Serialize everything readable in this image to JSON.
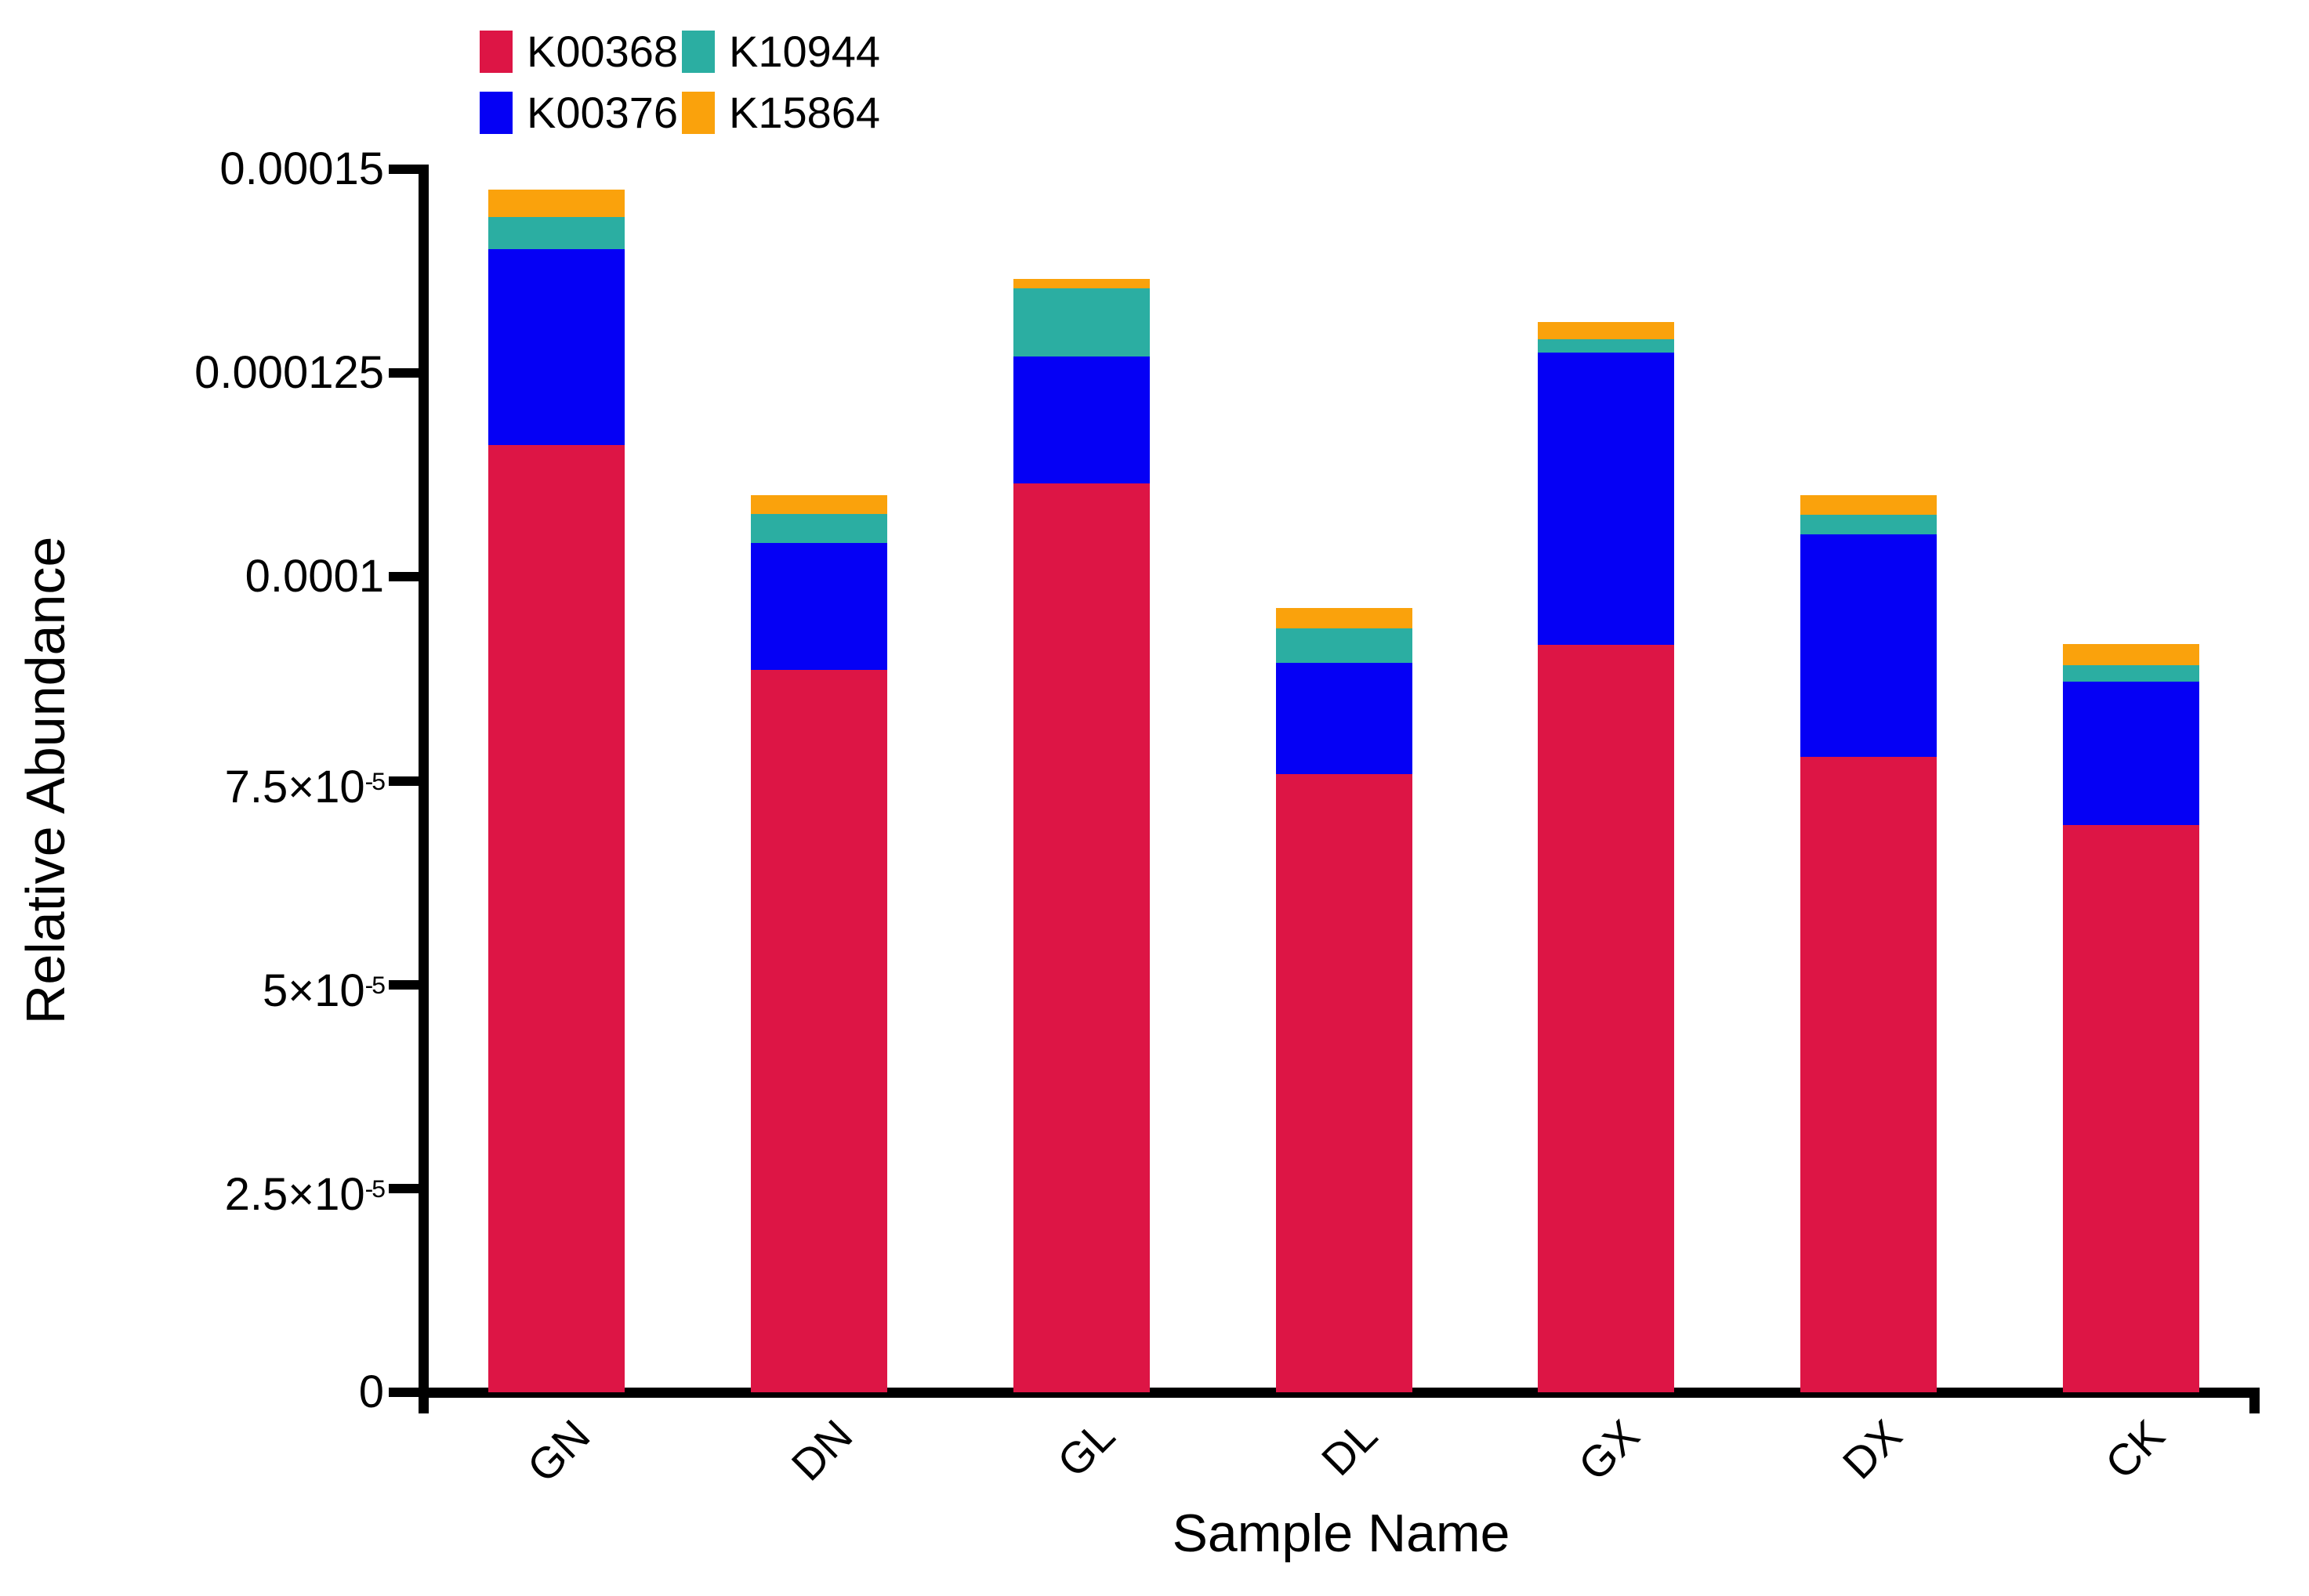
{
  "figure": {
    "background": "#FFFFFF",
    "y_axis_title": "Relative Abundance",
    "x_axis_title": "Sample Name"
  },
  "chart_data": {
    "type": "bar",
    "stacked": true,
    "title": "",
    "xlabel": "Sample Name",
    "ylabel": "Relative Abundance",
    "categories": [
      "GN",
      "DN",
      "GL",
      "DL",
      "GX",
      "DX",
      "CK"
    ],
    "series": [
      {
        "name": "K00368",
        "color": "#DD1545",
        "values": [
          0.0001162,
          8.86e-05,
          0.0001115,
          7.58e-05,
          9.17e-05,
          7.79e-05,
          6.96e-05
        ]
      },
      {
        "name": "K00376",
        "color": "#0500F5",
        "values": [
          2.4e-05,
          1.56e-05,
          1.55e-05,
          1.37e-05,
          3.58e-05,
          2.73e-05,
          1.76e-05
        ]
      },
      {
        "name": "K10944",
        "color": "#2BAEA2",
        "values": [
          3.9e-06,
          3.5e-06,
          8.4e-06,
          4.2e-06,
          1.6e-06,
          2.4e-06,
          2e-06
        ]
      },
      {
        "name": "K15864",
        "color": "#FAA20C",
        "values": [
          3.4e-06,
          2.3e-06,
          1.1e-06,
          2.5e-06,
          2.2e-06,
          2.4e-06,
          2.6e-06
        ]
      }
    ],
    "ylim": [
      0,
      0.00015
    ],
    "yticks": [
      {
        "value": 0,
        "label": "0"
      },
      {
        "value": 2.5e-05,
        "label": "2.5×10^-5"
      },
      {
        "value": 5e-05,
        "label": "5×10^-5"
      },
      {
        "value": 7.5e-05,
        "label": "7.5×10^-5"
      },
      {
        "value": 0.0001,
        "label": "0.0001"
      },
      {
        "value": 0.000125,
        "label": "0.000125"
      },
      {
        "value": 0.00015,
        "label": "0.00015"
      }
    ],
    "grid": false,
    "legend_position": "top-left, two columns",
    "stack_order_bottom_to_top": [
      "K00368",
      "K00376",
      "K10944",
      "K15864"
    ]
  }
}
